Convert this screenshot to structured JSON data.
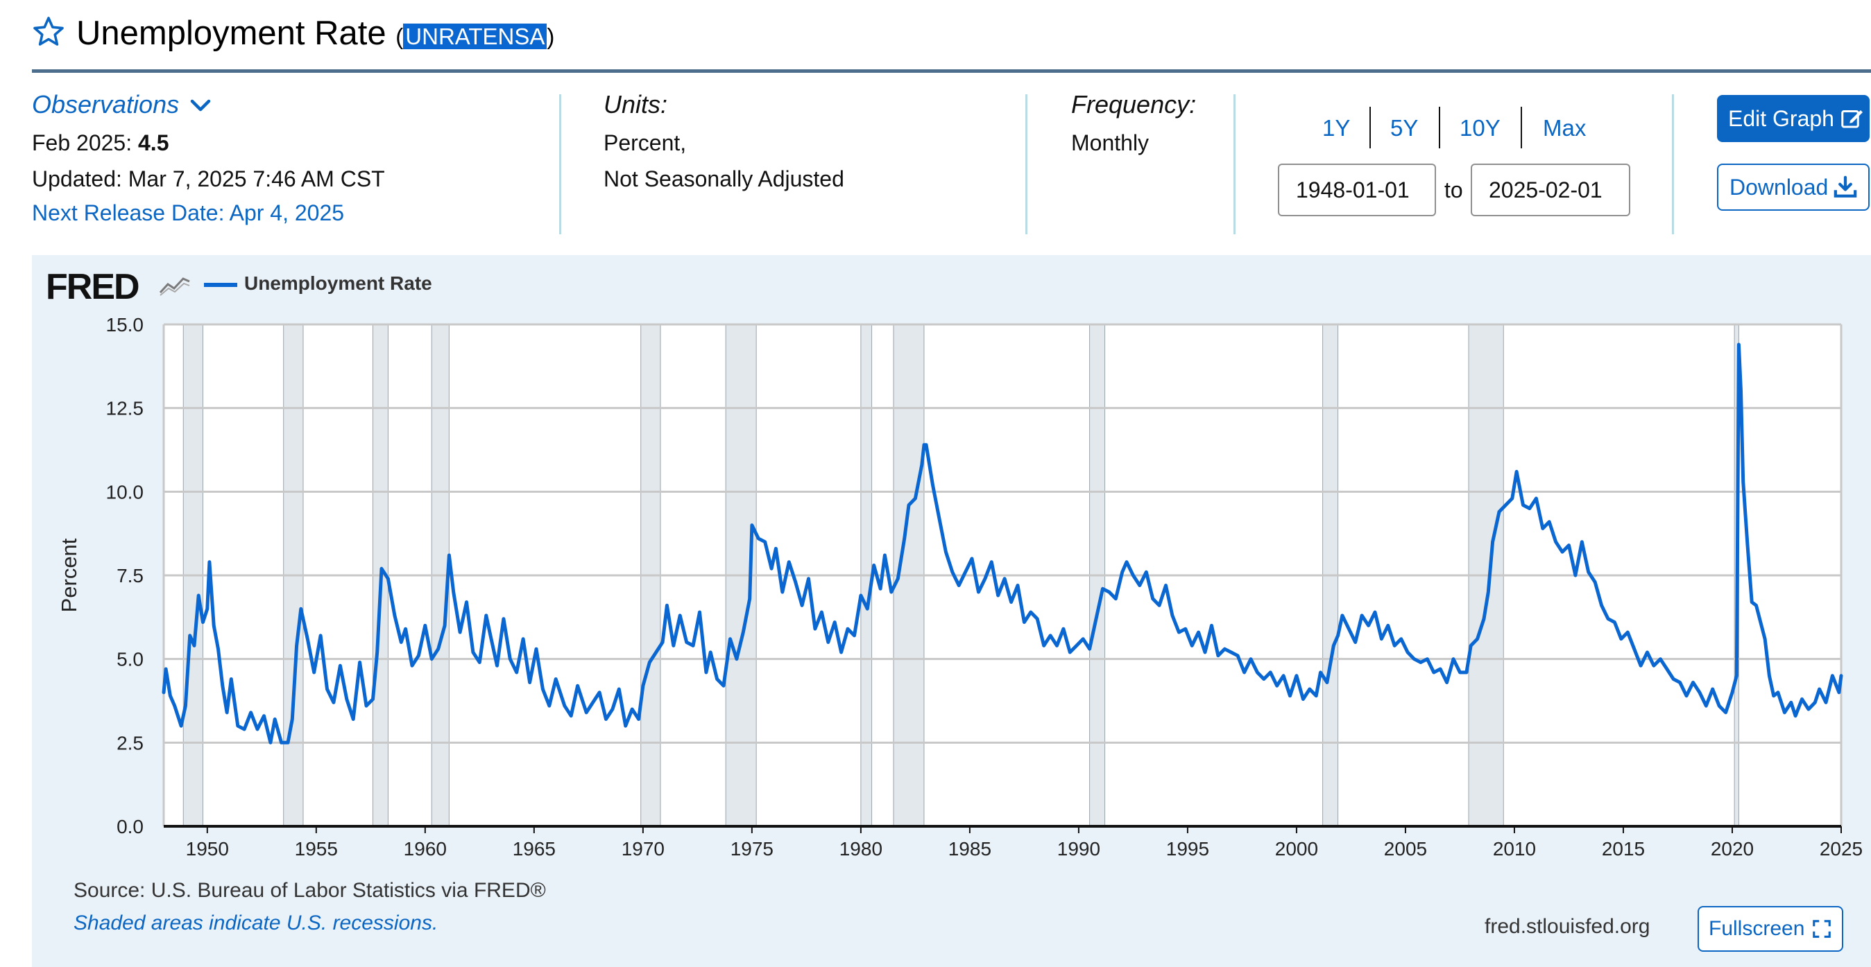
{
  "header": {
    "title": "Unemployment Rate",
    "series_id": "UNRATENSA",
    "star_icon": "star-outline-icon"
  },
  "observations": {
    "link_label": "Observations",
    "latest_label": "Feb 2025:",
    "latest_value": "4.5",
    "updated": "Updated: Mar 7, 2025 7:46 AM CST",
    "next_release": "Next Release Date: Apr 4, 2025"
  },
  "units": {
    "label": "Units:",
    "line1": "Percent,",
    "line2": "Not Seasonally Adjusted"
  },
  "frequency": {
    "label": "Frequency:",
    "value": "Monthly"
  },
  "range_buttons": [
    "1Y",
    "5Y",
    "10Y",
    "Max"
  ],
  "date_range": {
    "start": "1948-01-01",
    "to_label": "to",
    "end": "2025-02-01"
  },
  "actions": {
    "edit_graph": "Edit Graph",
    "download": "Download",
    "fullscreen": "Fullscreen"
  },
  "chart_header": {
    "logo": "FRED",
    "legend": "Unemployment Rate"
  },
  "footer": {
    "source": "Source: U.S. Bureau of Labor Statistics via FRED®",
    "shaded_note": "Shaded areas indicate U.S. recessions.",
    "site": "fred.stlouisfed.org"
  },
  "colors": {
    "accent": "#0a66c2",
    "line": "#0a66d0",
    "panel_bg": "#eaf2f9",
    "recession": "#e3e8ed"
  },
  "chart_data": {
    "type": "line",
    "ylabel": "Percent",
    "ylim": [
      0,
      15
    ],
    "xlim": [
      1948.0,
      2025.0
    ],
    "y_ticks": [
      "0.0",
      "2.5",
      "5.0",
      "7.5",
      "10.0",
      "12.5",
      "15.0"
    ],
    "x_ticks": [
      "1950",
      "1955",
      "1960",
      "1965",
      "1970",
      "1975",
      "1980",
      "1985",
      "1990",
      "1995",
      "2000",
      "2005",
      "2010",
      "2015",
      "2020",
      "2025"
    ],
    "grid": true,
    "recessions": [
      [
        1948.9,
        1949.8
      ],
      [
        1953.5,
        1954.4
      ],
      [
        1957.6,
        1958.3
      ],
      [
        1960.3,
        1961.1
      ],
      [
        1969.9,
        1970.8
      ],
      [
        1973.8,
        1975.2
      ],
      [
        1980.0,
        1980.5
      ],
      [
        1981.5,
        1982.9
      ],
      [
        1990.5,
        1991.2
      ],
      [
        2001.2,
        2001.9
      ],
      [
        2007.9,
        2009.5
      ],
      [
        2020.1,
        2020.3
      ]
    ],
    "series": [
      {
        "name": "Unemployment Rate",
        "points": [
          [
            1948.0,
            4.0
          ],
          [
            1948.1,
            4.7
          ],
          [
            1948.3,
            3.9
          ],
          [
            1948.5,
            3.6
          ],
          [
            1948.8,
            3.0
          ],
          [
            1949.0,
            3.6
          ],
          [
            1949.2,
            5.7
          ],
          [
            1949.4,
            5.4
          ],
          [
            1949.6,
            6.9
          ],
          [
            1949.8,
            6.1
          ],
          [
            1950.0,
            6.5
          ],
          [
            1950.1,
            7.9
          ],
          [
            1950.3,
            6.0
          ],
          [
            1950.5,
            5.3
          ],
          [
            1950.7,
            4.2
          ],
          [
            1950.9,
            3.4
          ],
          [
            1951.1,
            4.4
          ],
          [
            1951.4,
            3.0
          ],
          [
            1951.7,
            2.9
          ],
          [
            1952.0,
            3.4
          ],
          [
            1952.3,
            2.9
          ],
          [
            1952.6,
            3.3
          ],
          [
            1952.9,
            2.5
          ],
          [
            1953.1,
            3.2
          ],
          [
            1953.4,
            2.5
          ],
          [
            1953.7,
            2.5
          ],
          [
            1953.9,
            3.2
          ],
          [
            1954.1,
            5.4
          ],
          [
            1954.3,
            6.5
          ],
          [
            1954.6,
            5.6
          ],
          [
            1954.9,
            4.6
          ],
          [
            1955.2,
            5.7
          ],
          [
            1955.5,
            4.1
          ],
          [
            1955.8,
            3.7
          ],
          [
            1956.1,
            4.8
          ],
          [
            1956.4,
            3.8
          ],
          [
            1956.7,
            3.2
          ],
          [
            1957.0,
            4.9
          ],
          [
            1957.3,
            3.6
          ],
          [
            1957.6,
            3.8
          ],
          [
            1957.8,
            5.2
          ],
          [
            1958.0,
            7.7
          ],
          [
            1958.3,
            7.4
          ],
          [
            1958.6,
            6.3
          ],
          [
            1958.9,
            5.5
          ],
          [
            1959.1,
            5.9
          ],
          [
            1959.4,
            4.8
          ],
          [
            1959.7,
            5.1
          ],
          [
            1960.0,
            6.0
          ],
          [
            1960.3,
            5.0
          ],
          [
            1960.6,
            5.3
          ],
          [
            1960.9,
            6.0
          ],
          [
            1961.1,
            8.1
          ],
          [
            1961.3,
            7.0
          ],
          [
            1961.6,
            5.8
          ],
          [
            1961.9,
            6.7
          ],
          [
            1962.2,
            5.2
          ],
          [
            1962.5,
            4.9
          ],
          [
            1962.8,
            6.3
          ],
          [
            1963.0,
            5.7
          ],
          [
            1963.3,
            4.8
          ],
          [
            1963.6,
            6.2
          ],
          [
            1963.9,
            5.0
          ],
          [
            1964.2,
            4.6
          ],
          [
            1964.5,
            5.6
          ],
          [
            1964.8,
            4.3
          ],
          [
            1965.1,
            5.3
          ],
          [
            1965.4,
            4.1
          ],
          [
            1965.7,
            3.6
          ],
          [
            1966.0,
            4.4
          ],
          [
            1966.4,
            3.6
          ],
          [
            1966.7,
            3.3
          ],
          [
            1967.0,
            4.2
          ],
          [
            1967.4,
            3.4
          ],
          [
            1967.7,
            3.7
          ],
          [
            1968.0,
            4.0
          ],
          [
            1968.3,
            3.2
          ],
          [
            1968.6,
            3.5
          ],
          [
            1968.9,
            4.1
          ],
          [
            1969.2,
            3.0
          ],
          [
            1969.5,
            3.5
          ],
          [
            1969.8,
            3.2
          ],
          [
            1970.0,
            4.2
          ],
          [
            1970.3,
            4.9
          ],
          [
            1970.6,
            5.2
          ],
          [
            1970.9,
            5.5
          ],
          [
            1971.1,
            6.6
          ],
          [
            1971.4,
            5.4
          ],
          [
            1971.7,
            6.3
          ],
          [
            1972.0,
            5.5
          ],
          [
            1972.3,
            5.4
          ],
          [
            1972.6,
            6.4
          ],
          [
            1972.9,
            4.6
          ],
          [
            1973.1,
            5.2
          ],
          [
            1973.4,
            4.4
          ],
          [
            1973.7,
            4.2
          ],
          [
            1974.0,
            5.6
          ],
          [
            1974.3,
            5.0
          ],
          [
            1974.6,
            5.8
          ],
          [
            1974.9,
            6.8
          ],
          [
            1975.0,
            9.0
          ],
          [
            1975.3,
            8.6
          ],
          [
            1975.6,
            8.5
          ],
          [
            1975.9,
            7.7
          ],
          [
            1976.1,
            8.3
          ],
          [
            1976.4,
            7.0
          ],
          [
            1976.7,
            7.9
          ],
          [
            1977.0,
            7.3
          ],
          [
            1977.3,
            6.6
          ],
          [
            1977.6,
            7.4
          ],
          [
            1977.9,
            5.9
          ],
          [
            1978.2,
            6.4
          ],
          [
            1978.5,
            5.5
          ],
          [
            1978.8,
            6.1
          ],
          [
            1979.1,
            5.2
          ],
          [
            1979.4,
            5.9
          ],
          [
            1979.7,
            5.7
          ],
          [
            1980.0,
            6.9
          ],
          [
            1980.3,
            6.5
          ],
          [
            1980.6,
            7.8
          ],
          [
            1980.9,
            7.1
          ],
          [
            1981.1,
            8.1
          ],
          [
            1981.4,
            7.0
          ],
          [
            1981.7,
            7.4
          ],
          [
            1982.0,
            8.6
          ],
          [
            1982.2,
            9.6
          ],
          [
            1982.5,
            9.8
          ],
          [
            1982.8,
            10.8
          ],
          [
            1982.9,
            11.4
          ],
          [
            1983.0,
            11.4
          ],
          [
            1983.3,
            10.2
          ],
          [
            1983.6,
            9.2
          ],
          [
            1983.9,
            8.2
          ],
          [
            1984.2,
            7.6
          ],
          [
            1984.5,
            7.2
          ],
          [
            1984.8,
            7.6
          ],
          [
            1985.1,
            8.0
          ],
          [
            1985.4,
            7.0
          ],
          [
            1985.7,
            7.4
          ],
          [
            1986.0,
            7.9
          ],
          [
            1986.3,
            6.9
          ],
          [
            1986.6,
            7.4
          ],
          [
            1986.9,
            6.7
          ],
          [
            1987.2,
            7.2
          ],
          [
            1987.5,
            6.1
          ],
          [
            1987.8,
            6.4
          ],
          [
            1988.1,
            6.2
          ],
          [
            1988.4,
            5.4
          ],
          [
            1988.7,
            5.7
          ],
          [
            1989.0,
            5.4
          ],
          [
            1989.3,
            5.9
          ],
          [
            1989.6,
            5.2
          ],
          [
            1989.9,
            5.4
          ],
          [
            1990.2,
            5.6
          ],
          [
            1990.5,
            5.3
          ],
          [
            1990.8,
            6.2
          ],
          [
            1991.1,
            7.1
          ],
          [
            1991.4,
            7.0
          ],
          [
            1991.7,
            6.8
          ],
          [
            1992.0,
            7.6
          ],
          [
            1992.2,
            7.9
          ],
          [
            1992.5,
            7.5
          ],
          [
            1992.8,
            7.2
          ],
          [
            1993.1,
            7.6
          ],
          [
            1993.4,
            6.8
          ],
          [
            1993.7,
            6.6
          ],
          [
            1994.0,
            7.2
          ],
          [
            1994.3,
            6.3
          ],
          [
            1994.6,
            5.8
          ],
          [
            1994.9,
            5.9
          ],
          [
            1995.2,
            5.4
          ],
          [
            1995.5,
            5.8
          ],
          [
            1995.8,
            5.2
          ],
          [
            1996.1,
            6.0
          ],
          [
            1996.4,
            5.1
          ],
          [
            1996.7,
            5.3
          ],
          [
            1997.0,
            5.2
          ],
          [
            1997.3,
            5.1
          ],
          [
            1997.6,
            4.6
          ],
          [
            1997.9,
            5.0
          ],
          [
            1998.2,
            4.6
          ],
          [
            1998.5,
            4.4
          ],
          [
            1998.8,
            4.6
          ],
          [
            1999.1,
            4.2
          ],
          [
            1999.4,
            4.5
          ],
          [
            1999.7,
            3.9
          ],
          [
            2000.0,
            4.5
          ],
          [
            2000.3,
            3.8
          ],
          [
            2000.6,
            4.1
          ],
          [
            2000.9,
            3.9
          ],
          [
            2001.1,
            4.6
          ],
          [
            2001.4,
            4.3
          ],
          [
            2001.7,
            5.4
          ],
          [
            2001.9,
            5.7
          ],
          [
            2002.1,
            6.3
          ],
          [
            2002.4,
            5.9
          ],
          [
            2002.7,
            5.5
          ],
          [
            2003.0,
            6.3
          ],
          [
            2003.3,
            6.0
          ],
          [
            2003.6,
            6.4
          ],
          [
            2003.9,
            5.6
          ],
          [
            2004.2,
            6.0
          ],
          [
            2004.5,
            5.4
          ],
          [
            2004.8,
            5.6
          ],
          [
            2005.1,
            5.2
          ],
          [
            2005.4,
            5.0
          ],
          [
            2005.7,
            4.9
          ],
          [
            2006.0,
            5.0
          ],
          [
            2006.3,
            4.6
          ],
          [
            2006.6,
            4.7
          ],
          [
            2006.9,
            4.3
          ],
          [
            2007.2,
            5.0
          ],
          [
            2007.5,
            4.6
          ],
          [
            2007.8,
            4.6
          ],
          [
            2008.0,
            5.4
          ],
          [
            2008.3,
            5.6
          ],
          [
            2008.6,
            6.2
          ],
          [
            2008.8,
            7.0
          ],
          [
            2009.0,
            8.5
          ],
          [
            2009.3,
            9.4
          ],
          [
            2009.6,
            9.6
          ],
          [
            2009.9,
            9.8
          ],
          [
            2010.1,
            10.6
          ],
          [
            2010.4,
            9.6
          ],
          [
            2010.7,
            9.5
          ],
          [
            2011.0,
            9.8
          ],
          [
            2011.3,
            8.9
          ],
          [
            2011.6,
            9.1
          ],
          [
            2011.9,
            8.5
          ],
          [
            2012.2,
            8.2
          ],
          [
            2012.5,
            8.4
          ],
          [
            2012.8,
            7.5
          ],
          [
            2013.1,
            8.5
          ],
          [
            2013.4,
            7.6
          ],
          [
            2013.7,
            7.3
          ],
          [
            2014.0,
            6.6
          ],
          [
            2014.3,
            6.2
          ],
          [
            2014.6,
            6.1
          ],
          [
            2014.9,
            5.6
          ],
          [
            2015.2,
            5.8
          ],
          [
            2015.5,
            5.3
          ],
          [
            2015.8,
            4.8
          ],
          [
            2016.1,
            5.2
          ],
          [
            2016.4,
            4.8
          ],
          [
            2016.7,
            5.0
          ],
          [
            2017.0,
            4.7
          ],
          [
            2017.3,
            4.4
          ],
          [
            2017.6,
            4.3
          ],
          [
            2017.9,
            3.9
          ],
          [
            2018.2,
            4.3
          ],
          [
            2018.5,
            4.0
          ],
          [
            2018.8,
            3.6
          ],
          [
            2019.1,
            4.1
          ],
          [
            2019.4,
            3.6
          ],
          [
            2019.7,
            3.4
          ],
          [
            2020.0,
            4.0
          ],
          [
            2020.2,
            4.5
          ],
          [
            2020.3,
            14.4
          ],
          [
            2020.4,
            13.0
          ],
          [
            2020.5,
            10.3
          ],
          [
            2020.7,
            8.4
          ],
          [
            2020.9,
            6.7
          ],
          [
            2021.1,
            6.6
          ],
          [
            2021.3,
            6.1
          ],
          [
            2021.5,
            5.6
          ],
          [
            2021.7,
            4.5
          ],
          [
            2021.9,
            3.9
          ],
          [
            2022.1,
            4.0
          ],
          [
            2022.4,
            3.4
          ],
          [
            2022.7,
            3.7
          ],
          [
            2022.9,
            3.3
          ],
          [
            2023.2,
            3.8
          ],
          [
            2023.5,
            3.5
          ],
          [
            2023.8,
            3.7
          ],
          [
            2024.0,
            4.1
          ],
          [
            2024.3,
            3.7
          ],
          [
            2024.6,
            4.5
          ],
          [
            2024.9,
            4.0
          ],
          [
            2025.0,
            4.5
          ]
        ]
      }
    ]
  }
}
